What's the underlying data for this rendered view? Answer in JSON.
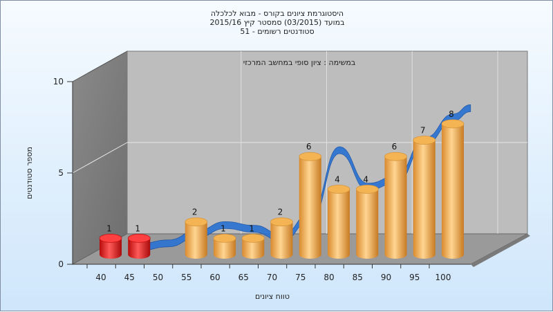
{
  "header": {
    "line1": "היסטוגרמת ציונים בקורס - מבוא לכלכלה",
    "line2": "במועד   (03/2015)  סמסטר קיץ 2015/16",
    "line3": "סטודנטים רשומים - 51"
  },
  "chart_data": {
    "type": "bar",
    "title": "במשימה : ציון סופי במחשב המרכזי",
    "xlabel": "טווח ציונים",
    "ylabel": "מספר סטודנטים",
    "ylim": [
      0,
      10
    ],
    "y_ticks": [
      "0",
      "5",
      "10"
    ],
    "x_ticks": [
      "40",
      "45",
      "50",
      "55",
      "60",
      "65",
      "70",
      "75",
      "80",
      "85",
      "90",
      "95",
      "100"
    ],
    "grid": true,
    "series": [
      {
        "color_failing": "#e01818",
        "color_passing": "#e8a348",
        "bars": [
          {
            "x": 40,
            "value": 1,
            "label": "1",
            "status": "failing"
          },
          {
            "x": 45,
            "value": 1,
            "label": "1",
            "status": "failing"
          },
          {
            "x": 55,
            "value": 2,
            "label": "2",
            "status": "passing"
          },
          {
            "x": 60,
            "value": 1,
            "label": "1",
            "status": "passing"
          },
          {
            "x": 65,
            "value": 1,
            "label": "1",
            "status": "passing"
          },
          {
            "x": 70,
            "value": 2,
            "label": "2",
            "status": "passing"
          },
          {
            "x": 75,
            "value": 6,
            "label": "6",
            "status": "passing"
          },
          {
            "x": 80,
            "value": 4,
            "label": "4",
            "status": "passing"
          },
          {
            "x": 85,
            "value": 4,
            "label": "4",
            "status": "passing"
          },
          {
            "x": 90,
            "value": 6,
            "label": "6",
            "status": "passing"
          },
          {
            "x": 95,
            "value": 7,
            "label": "7",
            "status": "passing"
          },
          {
            "x": 100,
            "value": 8,
            "label": "8",
            "status": "passing"
          }
        ]
      },
      {
        "type": "ribbon",
        "color": "#2f74d0",
        "points": [
          {
            "x": 45,
            "y": 0.3
          },
          {
            "x": 50,
            "y": 0.5
          },
          {
            "x": 55,
            "y": 1.0
          },
          {
            "x": 60,
            "y": 1.5
          },
          {
            "x": 65,
            "y": 1.3
          },
          {
            "x": 70,
            "y": 0.8
          },
          {
            "x": 75,
            "y": 2.0
          },
          {
            "x": 80,
            "y": 5.6
          },
          {
            "x": 85,
            "y": 3.6
          },
          {
            "x": 90,
            "y": 4.0
          },
          {
            "x": 95,
            "y": 6.1
          },
          {
            "x": 100,
            "y": 7.4
          },
          {
            "x": 103,
            "y": 7.9
          }
        ]
      }
    ]
  }
}
